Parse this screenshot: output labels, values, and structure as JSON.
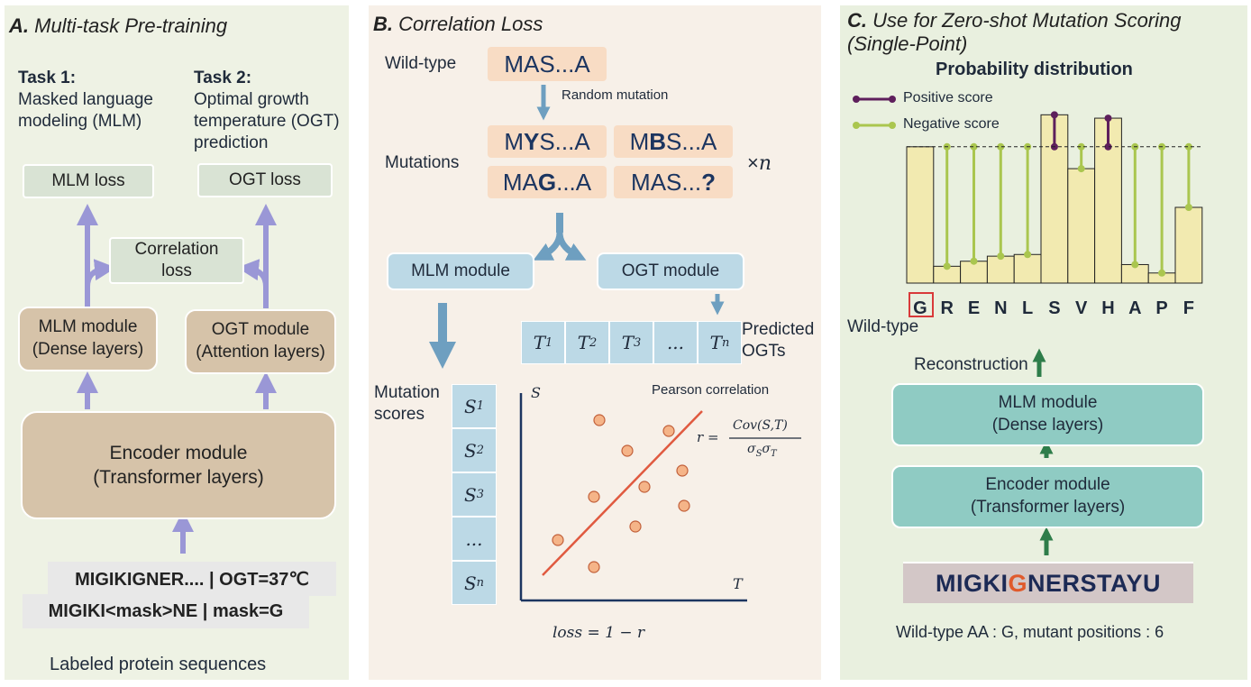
{
  "panel_a": {
    "title_letter": "A.",
    "title": "Multi-task Pre-training",
    "task1_head": "Task 1:",
    "task1_line1": "Masked language",
    "task1_line2": "modeling (MLM)",
    "task2_head": "Task 2:",
    "task2_line1": "Optimal growth",
    "task2_line2": "temperature (OGT)",
    "task2_line3": "prediction",
    "mlm_loss": "MLM loss",
    "ogt_loss": "OGT loss",
    "corr_line1": "Correlation",
    "corr_line2": "loss",
    "mlm_module_line1": "MLM module",
    "mlm_module_line2": "(Dense layers)",
    "ogt_module_line1": "OGT module",
    "ogt_module_line2": "(Attention layers)",
    "encoder_line1": "Encoder module",
    "encoder_line2": "(Transformer layers)",
    "seq1": "MIGIKIGNER.... | OGT=37℃",
    "seq2": "MIGIKI<mask>NE | mask=G",
    "footer": "Labeled protein sequences"
  },
  "panel_b": {
    "title_letter": "B.",
    "title": "Correlation Loss",
    "wildtype_label": "Wild-type",
    "wildtype_seq": "MAS...A",
    "random_mutation": "Random mutation",
    "mutations_label": "Mutations",
    "mut1_a": "M",
    "mut1_b": "Y",
    "mut1_c": "S...A",
    "mut2_a": "M",
    "mut2_b": "B",
    "mut2_c": "S...A",
    "mut3_a": "MA",
    "mut3_b": "G",
    "mut3_c": "...A",
    "mut4_a": "MAS...",
    "mut4_b": "?",
    "times": "×",
    "times_n": "n",
    "mlm_module": "MLM module",
    "ogt_module": "OGT module",
    "t_cells": [
      {
        "base": "T",
        "sub": "1"
      },
      {
        "base": "T",
        "sub": "2"
      },
      {
        "base": "T",
        "sub": "3"
      },
      {
        "base": "...",
        "sub": ""
      },
      {
        "base": "T",
        "sub": "n"
      }
    ],
    "predicted_line1": "Predicted",
    "predicted_line2": "OGTs",
    "mutation_scores_line1": "Mutation",
    "mutation_scores_line2": "scores",
    "s_cells": [
      {
        "base": "S",
        "sub": "1"
      },
      {
        "base": "S",
        "sub": "2"
      },
      {
        "base": "S",
        "sub": "3"
      },
      {
        "base": "...",
        "sub": ""
      },
      {
        "base": "S",
        "sub": "n"
      }
    ],
    "axis_y": "S",
    "axis_x": "T",
    "pearson": "Pearson correlation",
    "r_eq": "r =",
    "r_num": "Cov(S,T)",
    "r_den_a": "σ",
    "r_den_b": "S",
    "r_den_c": "σ",
    "r_den_d": "T",
    "loss_eq": "loss = 1 − r"
  },
  "panel_c": {
    "title_letter": "C.",
    "title_line1": "Use for Zero-shot Mutation Scoring",
    "title_line2": "(Single-Point)",
    "prob_title": "Probability distribution",
    "legend_positive": "Positive score",
    "legend_negative": "Negative score",
    "wildtype_label": "Wild-type",
    "reconstruction": "Reconstruction",
    "mlm_module_line1": "MLM module",
    "mlm_module_line2": "(Dense layers)",
    "encoder_line1": "Encoder module",
    "encoder_line2": "(Transformer layers)",
    "seq_pre": "MIGKI",
    "seq_mut": "G",
    "seq_post": "NERSTAYU",
    "footer": "Wild-type AA : G, mutant positions : 6",
    "colors": {
      "bar_fill": "#f2eab0",
      "positive": "#5e1f5c",
      "negative": "#aac64f",
      "mutant_letter": "#e05a2c",
      "highlight_box": "#d93a3a"
    }
  },
  "chart_data": {
    "type": "bar",
    "title": "Probability distribution",
    "categories": [
      "G",
      "R",
      "E",
      "N",
      "L",
      "S",
      "V",
      "H",
      "A",
      "P",
      "F"
    ],
    "values": [
      0.81,
      0.1,
      0.13,
      0.16,
      0.17,
      1.0,
      0.68,
      0.98,
      0.11,
      0.06,
      0.45
    ],
    "reference_value": 0.81,
    "reference_category": "G",
    "ylim": [
      0,
      1.05
    ],
    "legend": [
      "Positive score",
      "Negative score"
    ],
    "positive_categories": [
      "S",
      "H"
    ],
    "negative_categories": [
      "R",
      "E",
      "N",
      "L",
      "V",
      "A",
      "P",
      "F"
    ]
  }
}
